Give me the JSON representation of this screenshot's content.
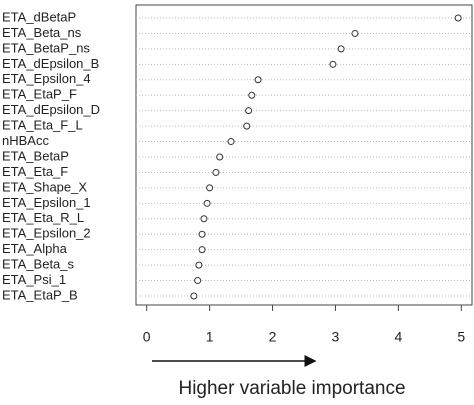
{
  "chart_data": {
    "type": "dot",
    "xlabel": "Higher variable importance",
    "categories": [
      "ETA_dBetaP",
      "ETA_Beta_ns",
      "ETA_BetaP_ns",
      "ETA_dEpsilon_B",
      "ETA_Epsilon_4",
      "ETA_EtaP_F",
      "ETA_dEpsilon_D",
      "ETA_Eta_F_L",
      "nHBAcc",
      "ETA_BetaP",
      "ETA_Eta_F",
      "ETA_Shape_X",
      "ETA_Epsilon_1",
      "ETA_Eta_R_L",
      "ETA_Epsilon_2",
      "ETA_Alpha",
      "ETA_Beta_s",
      "ETA_Psi_1",
      "ETA_EtaP_B"
    ],
    "values": [
      4.95,
      3.31,
      3.09,
      2.96,
      1.77,
      1.67,
      1.62,
      1.59,
      1.34,
      1.16,
      1.1,
      1.0,
      0.96,
      0.91,
      0.88,
      0.88,
      0.83,
      0.81,
      0.75
    ],
    "color": "#333333",
    "xlim": [
      -0.17,
      5.17
    ],
    "xticks": [
      0,
      1,
      2,
      3,
      4,
      5
    ],
    "grid": true
  }
}
